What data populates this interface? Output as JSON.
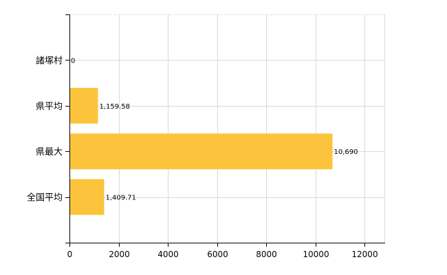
{
  "chart_data": {
    "type": "bar",
    "orientation": "horizontal",
    "categories": [
      "諸塚村",
      "県平均",
      "県最大",
      "全国平均"
    ],
    "values": [
      0,
      1159.58,
      10690,
      1409.71
    ],
    "value_labels": [
      "0",
      "1,159.58",
      "10,690",
      "1,409.71"
    ],
    "x_ticks": [
      0,
      2000,
      4000,
      6000,
      8000,
      10000,
      12000
    ],
    "x_tick_labels": [
      "0",
      "2000",
      "4000",
      "6000",
      "8000",
      "10000",
      "12000"
    ],
    "xlim": [
      0,
      12800
    ],
    "grid": true,
    "bar_color": "#fcc43c"
  }
}
